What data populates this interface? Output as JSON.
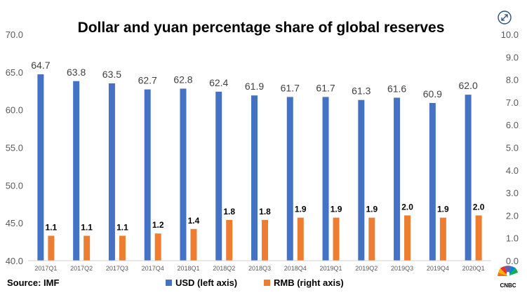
{
  "chart_data": {
    "type": "bar",
    "title": "Dollar and yuan percentage share of global reserves",
    "categories": [
      "2017Q1",
      "2017Q2",
      "2017Q3",
      "2017Q4",
      "2018Q1",
      "2018Q2",
      "2018Q3",
      "2018Q4",
      "2019Q1",
      "2019Q2",
      "2019Q3",
      "2019Q4",
      "2020Q1"
    ],
    "series": [
      {
        "name": "USD (left axis)",
        "axis": "left",
        "color": "#4472C4",
        "values": [
          64.7,
          63.8,
          63.5,
          62.7,
          62.8,
          62.4,
          61.9,
          61.7,
          61.7,
          61.3,
          61.6,
          60.9,
          62.0
        ],
        "labels": [
          "64.7",
          "63.8",
          "63.5",
          "62.7",
          "62.8",
          "62.4",
          "61.9",
          "61.7",
          "61.7",
          "61.3",
          "61.6",
          "60.9",
          "62.0"
        ]
      },
      {
        "name": "RMB (right axis)",
        "axis": "right",
        "color": "#ED7D31",
        "values": [
          1.1,
          1.1,
          1.1,
          1.2,
          1.4,
          1.8,
          1.8,
          1.9,
          1.9,
          1.9,
          2.0,
          1.9,
          2.0
        ],
        "labels": [
          "1.1",
          "1.1",
          "1.1",
          "1.2",
          "1.4",
          "1.8",
          "1.8",
          "1.9",
          "1.9",
          "1.9",
          "2.0",
          "1.9",
          "2.0"
        ]
      }
    ],
    "left_axis": {
      "range": [
        40,
        70
      ],
      "ticks": [
        "70.0",
        "65.0",
        "60.0",
        "55.0",
        "50.0",
        "45.0",
        "40.0"
      ],
      "tick_values": [
        70,
        65,
        60,
        55,
        50,
        45,
        40
      ]
    },
    "right_axis": {
      "range": [
        0,
        10
      ],
      "ticks": [
        "10.0",
        "9.0",
        "8.0",
        "7.0",
        "6.0",
        "5.0",
        "4.0",
        "3.0",
        "2.0",
        "1.0",
        "0.0"
      ],
      "tick_values": [
        10,
        9,
        8,
        7,
        6,
        5,
        4,
        3,
        2,
        1,
        0
      ]
    },
    "legend_position": "bottom",
    "grid": false
  },
  "source": "Source: IMF",
  "brand": {
    "name": "CNBC"
  },
  "icons": {
    "expand": "expand-icon",
    "logo": "cnbc-peacock-logo"
  }
}
